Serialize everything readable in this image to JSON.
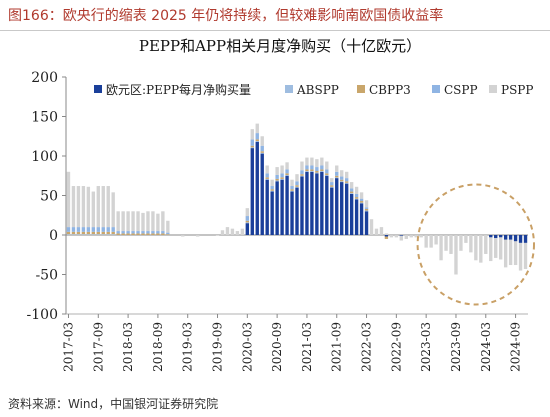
{
  "header": {
    "text": "图166：欧央行的缩表 2025 年仍将持续，但较难影响南欧国债收益率"
  },
  "source": {
    "text": "资料来源：Wind，中国银河证券研究院"
  },
  "colors": {
    "header_text": "#b03a2e",
    "pepp": "#1a3f9a",
    "abspp": "#9fbde0",
    "cbpp3": "#c9a66b",
    "cspp": "#8fb4e3",
    "pspp": "#d3d3d3",
    "highlight_circle": "#c9a066"
  },
  "chart_data": {
    "type": "bar",
    "stacked": true,
    "title": "PEPP和APP相关月度净购买（十亿欧元）",
    "xlabel": "",
    "ylabel": "",
    "ylim": [
      -100,
      200
    ],
    "yticks": [
      -100,
      -50,
      0,
      50,
      100,
      150,
      200
    ],
    "xtick_labels": [
      "2017-03",
      "2017-09",
      "2018-03",
      "2018-09",
      "2019-03",
      "2019-09",
      "2020-03",
      "2020-09",
      "2021-03",
      "2021-09",
      "2022-03",
      "2022-09",
      "2023-03",
      "2023-09",
      "2024-03",
      "2024-09"
    ],
    "legend": {
      "position": "top",
      "entries": [
        "欧元区:PEPP每月净购买量",
        "ABSPP",
        "CBPP3",
        "CSPP",
        "PSPP"
      ]
    },
    "annotation": "dashed ellipse highlighting 2023-03 to 2024-11 negative net purchases",
    "categories": [
      "2017-03",
      "2017-04",
      "2017-05",
      "2017-06",
      "2017-07",
      "2017-08",
      "2017-09",
      "2017-10",
      "2017-11",
      "2017-12",
      "2018-01",
      "2018-02",
      "2018-03",
      "2018-04",
      "2018-05",
      "2018-06",
      "2018-07",
      "2018-08",
      "2018-09",
      "2018-10",
      "2018-11",
      "2018-12",
      "2019-01",
      "2019-02",
      "2019-03",
      "2019-04",
      "2019-05",
      "2019-06",
      "2019-07",
      "2019-08",
      "2019-09",
      "2019-10",
      "2019-11",
      "2019-12",
      "2020-01",
      "2020-02",
      "2020-03",
      "2020-04",
      "2020-05",
      "2020-06",
      "2020-07",
      "2020-08",
      "2020-09",
      "2020-10",
      "2020-11",
      "2020-12",
      "2021-01",
      "2021-02",
      "2021-03",
      "2021-04",
      "2021-05",
      "2021-06",
      "2021-07",
      "2021-08",
      "2021-09",
      "2021-10",
      "2021-11",
      "2021-12",
      "2022-01",
      "2022-02",
      "2022-03",
      "2022-04",
      "2022-05",
      "2022-06",
      "2022-07",
      "2022-08",
      "2022-09",
      "2022-10",
      "2022-11",
      "2022-12",
      "2023-01",
      "2023-02",
      "2023-03",
      "2023-04",
      "2023-05",
      "2023-06",
      "2023-07",
      "2023-08",
      "2023-09",
      "2023-10",
      "2023-11",
      "2023-12",
      "2024-01",
      "2024-02",
      "2024-03",
      "2024-04",
      "2024-05",
      "2024-06",
      "2024-07",
      "2024-08",
      "2024-09",
      "2024-10",
      "2024-11"
    ],
    "series": [
      {
        "name": "欧元区:PEPP每月净购买量",
        "color": "#1a3f9a",
        "values": [
          0,
          0,
          0,
          0,
          0,
          0,
          0,
          0,
          0,
          0,
          0,
          0,
          0,
          0,
          0,
          0,
          0,
          0,
          0,
          0,
          0,
          0,
          0,
          0,
          0,
          0,
          0,
          0,
          0,
          0,
          0,
          0,
          0,
          0,
          0,
          0,
          15,
          110,
          118,
          103,
          70,
          55,
          68,
          70,
          75,
          55,
          60,
          74,
          80,
          80,
          78,
          80,
          75,
          60,
          72,
          67,
          65,
          52,
          45,
          40,
          30,
          0,
          0,
          0,
          -2,
          0,
          0,
          -1,
          0,
          0,
          0,
          0,
          0,
          0,
          0,
          0,
          0,
          0,
          0,
          0,
          0,
          0,
          0,
          0,
          0,
          -3,
          -4,
          -3,
          -6,
          -6,
          -8,
          -10,
          -10
        ]
      },
      {
        "name": "ABSPP",
        "color": "#9fbde0",
        "values": [
          1,
          1,
          1,
          1,
          1,
          1,
          1,
          1,
          1,
          1,
          0,
          0,
          0,
          0,
          0,
          0,
          0,
          0,
          0,
          0,
          0,
          0,
          0,
          0,
          0,
          0,
          0,
          0,
          0,
          0,
          0,
          0,
          0,
          0,
          0,
          0,
          1,
          1,
          1,
          1,
          1,
          1,
          1,
          1,
          1,
          1,
          1,
          1,
          1,
          1,
          1,
          1,
          1,
          1,
          1,
          1,
          1,
          1,
          1,
          1,
          1,
          0,
          0,
          0,
          0,
          0,
          0,
          0,
          0,
          0,
          0,
          0,
          0,
          0,
          0,
          0,
          0,
          0,
          0,
          0,
          0,
          0,
          0,
          0,
          0,
          0,
          0,
          0,
          0,
          0,
          0,
          0,
          0
        ]
      },
      {
        "name": "CBPP3",
        "color": "#c9a66b",
        "values": [
          3,
          3,
          3,
          3,
          3,
          3,
          3,
          3,
          3,
          3,
          2,
          2,
          2,
          2,
          2,
          2,
          2,
          2,
          2,
          2,
          1,
          0,
          0,
          0,
          0,
          0,
          0,
          0,
          0,
          0,
          0,
          0,
          0,
          0,
          0,
          0,
          2,
          2,
          2,
          2,
          2,
          2,
          2,
          2,
          2,
          2,
          2,
          2,
          2,
          2,
          2,
          2,
          2,
          2,
          2,
          2,
          2,
          2,
          2,
          2,
          2,
          0,
          0,
          0,
          -3,
          0,
          0,
          0,
          0,
          0,
          0,
          0,
          0,
          0,
          0,
          0,
          0,
          0,
          0,
          0,
          0,
          0,
          0,
          0,
          0,
          0,
          0,
          0,
          0,
          0,
          0,
          0,
          0
        ]
      },
      {
        "name": "CSPP",
        "color": "#8fb4e3",
        "values": [
          6,
          6,
          6,
          6,
          6,
          6,
          6,
          6,
          6,
          6,
          3,
          3,
          3,
          3,
          3,
          3,
          3,
          3,
          3,
          3,
          2,
          0,
          0,
          0,
          0,
          0,
          0,
          0,
          0,
          0,
          0,
          0,
          0,
          0,
          0,
          0,
          6,
          8,
          8,
          7,
          5,
          4,
          5,
          5,
          5,
          4,
          5,
          5,
          5,
          5,
          5,
          5,
          5,
          4,
          5,
          4,
          4,
          4,
          4,
          3,
          2,
          0,
          0,
          0,
          0,
          0,
          0,
          0,
          0,
          0,
          0,
          0,
          0,
          0,
          0,
          0,
          0,
          0,
          0,
          0,
          0,
          0,
          0,
          0,
          0,
          0,
          0,
          0,
          0,
          0,
          0,
          0,
          0
        ]
      },
      {
        "name": "PSPP",
        "color": "#d3d3d3",
        "values": [
          70,
          52,
          52,
          52,
          51,
          45,
          52,
          52,
          52,
          44,
          25,
          25,
          25,
          25,
          25,
          23,
          25,
          25,
          22,
          25,
          15,
          0,
          0,
          -2,
          0,
          0,
          -2,
          0,
          0,
          0,
          -1,
          6,
          10,
          8,
          5,
          8,
          10,
          13,
          12,
          12,
          10,
          8,
          10,
          10,
          9,
          8,
          9,
          11,
          10,
          10,
          10,
          10,
          10,
          5,
          8,
          8,
          8,
          8,
          9,
          8,
          9,
          20,
          8,
          10,
          2,
          -3,
          -3,
          -6,
          -5,
          -3,
          -3,
          -3,
          -16,
          -16,
          -12,
          -32,
          -20,
          -24,
          -50,
          -20,
          -10,
          -22,
          -32,
          -35,
          -24,
          -30,
          -25,
          -28,
          -35,
          -32,
          -30,
          -35,
          -33
        ]
      }
    ]
  }
}
